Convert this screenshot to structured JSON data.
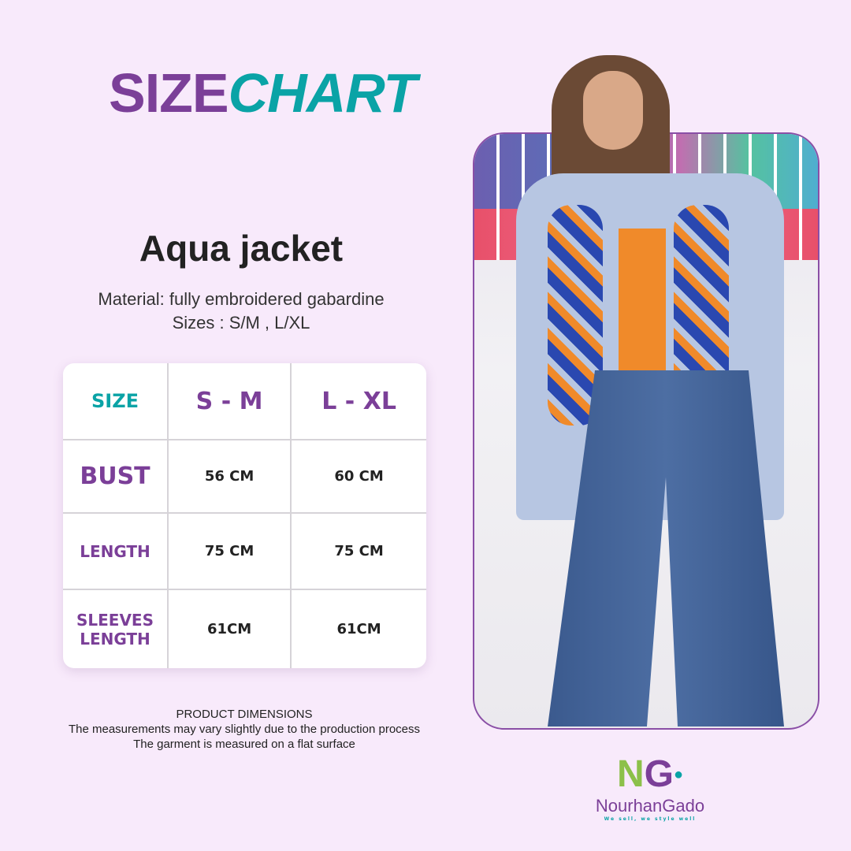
{
  "header": {
    "title_part1": "SIZE",
    "title_part2": "CHART"
  },
  "product": {
    "name": "Aqua jacket",
    "material": "Material: fully embroidered gabardine",
    "sizes": "Sizes : S/M , L/XL"
  },
  "size_table": {
    "header": [
      "SIZE",
      "S - M",
      "L - XL"
    ],
    "rows": [
      {
        "label": [
          "BUST"
        ],
        "values": [
          "56 CM",
          "60 CM"
        ]
      },
      {
        "label": [
          "LENGTH"
        ],
        "values": [
          "75 CM",
          "75 CM"
        ]
      },
      {
        "label": [
          "SLEEVES",
          "LENGTH"
        ],
        "values": [
          "61CM",
          "61CM"
        ]
      }
    ]
  },
  "notes": {
    "title": "PRODUCT DIMENSIONS",
    "line1": "The measurements may vary slightly due to the production process",
    "line2": "The garment is measured on a flat surface"
  },
  "brand": {
    "logo_letters": "NG",
    "name": "NourhanGado",
    "tagline": "We sell, we style well"
  },
  "colors": {
    "purple": "#7b3f98",
    "teal": "#0aa3a6",
    "background": "#f8eafb",
    "logo_green": "#8cc04a"
  }
}
